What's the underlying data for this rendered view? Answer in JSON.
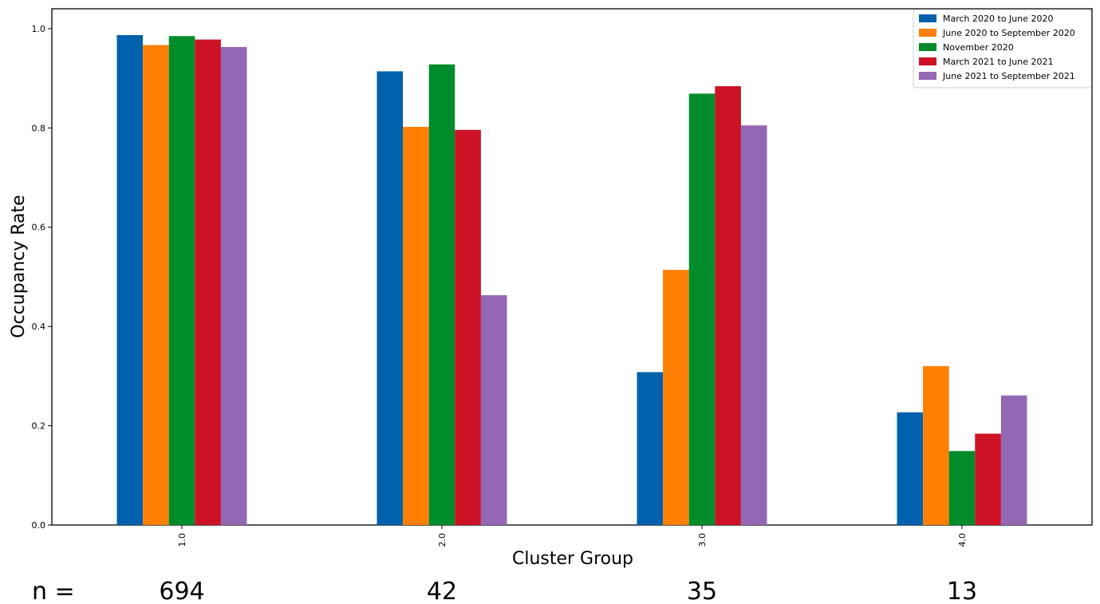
{
  "chart_data": {
    "type": "bar",
    "title": "",
    "xlabel": "Cluster Group",
    "ylabel": "Occupancy Rate",
    "categories": [
      "1.0",
      "2.0",
      "3.0",
      "4.0"
    ],
    "ylim": [
      0,
      1.04
    ],
    "yticks": [
      "0.0",
      "0.2",
      "0.4",
      "0.6",
      "0.8",
      "1.0"
    ],
    "grid": false,
    "legend_position": "top-right",
    "series": [
      {
        "name": "March 2020 to June 2020",
        "color": "#0061ac",
        "values": [
          0.987,
          0.914,
          0.308,
          0.227
        ]
      },
      {
        "name": "June 2020 to September 2020",
        "color": "#ff7e04",
        "values": [
          0.967,
          0.802,
          0.514,
          0.32
        ]
      },
      {
        "name": "November 2020",
        "color": "#008c2a",
        "values": [
          0.985,
          0.928,
          0.869,
          0.149
        ]
      },
      {
        "name": "March 2021 to June 2021",
        "color": "#cd1225",
        "values": [
          0.978,
          0.796,
          0.884,
          0.184
        ]
      },
      {
        "name": "June 2021 to September 2021",
        "color": "#9467b4",
        "values": [
          0.963,
          0.463,
          0.805,
          0.261
        ]
      }
    ]
  },
  "sample_sizes": {
    "prefix": "n =",
    "values": [
      "694",
      "42",
      "35",
      "13"
    ]
  }
}
